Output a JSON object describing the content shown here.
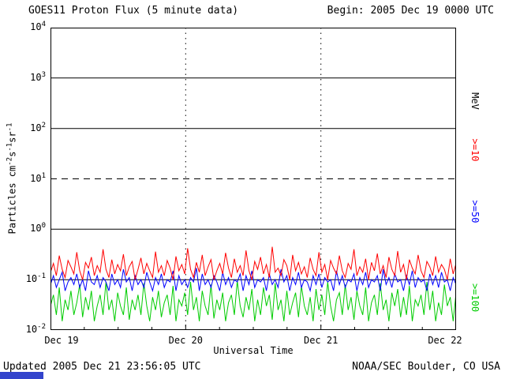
{
  "header": {
    "title": "GOES11 Proton Flux (5 minute data)",
    "begin_label": "Begin: 2005 Dec 19 0000 UTC"
  },
  "footer": {
    "updated": "Updated 2005 Dec 21 23:56:05 UTC",
    "source": "NOAA/SEC Boulder, CO USA"
  },
  "axes": {
    "x_title": "Universal Time",
    "y_title_parts": {
      "base": "Particles cm",
      "sup1": "-2",
      "unit1": "s",
      "sup2": "-1",
      "unit2": "sr",
      "sup3": "-1"
    },
    "x_ticks": [
      "Dec 19",
      "Dec 20",
      "Dec 21",
      "Dec 22"
    ],
    "y_tick_exponents": [
      4,
      3,
      2,
      1,
      0,
      -1,
      -2
    ],
    "right_labels": [
      {
        "text": "MeV",
        "color": "#000000"
      },
      {
        "text": ">=10",
        "color": "#ff0000"
      },
      {
        "text": ">=50",
        "color": "#0000ff"
      },
      {
        "text": ">=100",
        "color": "#00cc00"
      }
    ]
  },
  "chart_data": {
    "type": "line",
    "title": "GOES11 Proton Flux (5 minute data)",
    "xlabel": "Universal Time",
    "ylabel": "Particles cm-2 s-1 sr-1",
    "x_range": [
      "2005 Dec 19 0000 UTC",
      "2005 Dec 22 0000 UTC"
    ],
    "x_tick_labels": [
      "Dec 19",
      "Dec 20",
      "Dec 21",
      "Dec 22"
    ],
    "y_scale": "log",
    "y_log_range": [
      -2,
      4
    ],
    "gridlines": {
      "solid_decades": [
        3,
        2,
        0,
        -1
      ],
      "dashed_decades": [
        1
      ],
      "vertical_days": [
        1,
        2
      ]
    },
    "legend_position": "right-rotated",
    "series": [
      {
        "name": ">=100 MeV",
        "color": "#00cc00",
        "approx_level": 0.03,
        "values_csv": "0.03,0.05,0.02,0.07,0.015,0.04,0.025,0.06,0.02,0.035,0.08,0.018,0.045,0.025,0.06,0.015,0.03,0.05,0.02,0.09,0.025,0.04,0.015,0.055,0.03,0.02,0.07,0.016,0.04,0.025,0.05,0.02,0.085,0.03,0.015,0.045,0.025,0.06,0.018,0.035,0.05,0.02,0.075,0.015,0.04,0.03,0.055,0.02,0.09,0.025,0.045,0.015,0.06,0.03,0.02,0.08,0.017,0.04,0.025,0.055,0.015,0.035,0.05,0.02,0.095,0.03,0.018,0.045,0.025,0.065,0.015,0.04,0.02,0.07,0.03,0.05,0.016,0.085,0.025,0.04,0.015,0.06,0.02,0.035,0.055,0.018,0.075,0.03,0.02,0.045,0.015,0.065,0.025,0.05,0.02,0.09,0.03,0.015,0.04,0.055,0.02,0.08,0.025,0.045,0.016,0.06,0.03,0.02,0.07,0.015,0.035,0.05,0.02,0.085,0.025,0.04,0.015,0.055,0.03,0.065,0.018,0.045,0.02,0.075,0.015,0.04,0.03,0.05,0.02,0.09,0.025,0.06,0.015,0.035,0.02,0.08,0.03,0.045,0.015,0.055"
      },
      {
        "name": ">=50 MeV",
        "color": "#0000ff",
        "approx_level": 0.09,
        "values_csv": "0.08,0.12,0.07,0.1,0.14,0.06,0.09,0.11,0.08,0.13,0.07,0.1,0.06,0.15,0.09,0.08,0.12,0.07,0.11,0.09,0.06,0.13,0.08,0.1,0.07,0.16,0.09,0.11,0.06,0.12,0.08,0.1,0.07,0.14,0.09,0.06,0.11,0.08,0.13,0.07,0.1,0.09,0.15,0.06,0.12,0.08,0.1,0.07,0.11,0.09,0.17,0.06,0.13,0.08,0.1,0.07,0.12,0.09,0.06,0.14,0.08,0.11,0.07,0.1,0.09,0.13,0.06,0.12,0.08,0.15,0.07,0.1,0.09,0.11,0.06,0.13,0.08,0.1,0.07,0.16,0.09,0.12,0.06,0.11,0.08,0.14,0.07,0.1,0.09,0.06,0.12,0.08,0.13,0.07,0.11,0.09,0.1,0.06,0.15,0.08,0.12,0.07,0.1,0.09,0.13,0.06,0.11,0.08,0.14,0.07,0.1,0.09,0.12,0.06,0.16,0.08,0.11,0.07,0.13,0.09,0.1,0.06,0.12,0.08,0.15,0.07,0.11,0.09,0.1,0.06,0.13,0.08,0.12,0.07,0.14,0.09,0.1,0.06,0.11,0.08"
      },
      {
        "name": ">=10 MeV",
        "color": "#ff0000",
        "approx_level": 0.16,
        "values_csv": "0.14,0.21,0.12,0.3,0.16,0.11,0.24,0.18,0.13,0.35,0.15,0.1,0.22,0.17,0.28,0.12,0.19,0.14,0.4,0.16,0.11,0.25,0.13,0.2,0.15,0.32,0.12,0.18,0.23,0.1,0.16,0.27,0.13,0.21,0.15,0.11,0.36,0.14,0.19,0.12,0.24,0.17,0.1,0.29,0.15,0.2,0.13,0.42,0.16,0.11,0.22,0.14,0.31,0.12,0.18,0.25,0.1,0.15,0.21,0.13,0.34,0.17,0.11,0.26,0.14,0.19,0.12,0.38,0.15,0.1,0.23,0.16,0.28,0.13,0.2,0.11,0.45,0.14,0.17,0.12,0.25,0.19,0.1,0.31,0.15,0.22,0.13,0.18,0.11,0.27,0.16,0.12,0.35,0.14,0.2,0.1,0.24,0.17,0.13,0.3,0.15,0.11,0.21,0.16,0.4,0.12,0.18,0.14,0.26,0.1,0.22,0.15,0.33,0.13,0.19,0.11,0.28,0.16,0.12,0.37,0.14,0.2,0.1,0.25,0.17,0.13,0.31,0.15,0.11,0.23,0.18,0.12,0.29,0.14,0.2,0.16,0.1,0.26,0.13,0.21"
      }
    ]
  }
}
